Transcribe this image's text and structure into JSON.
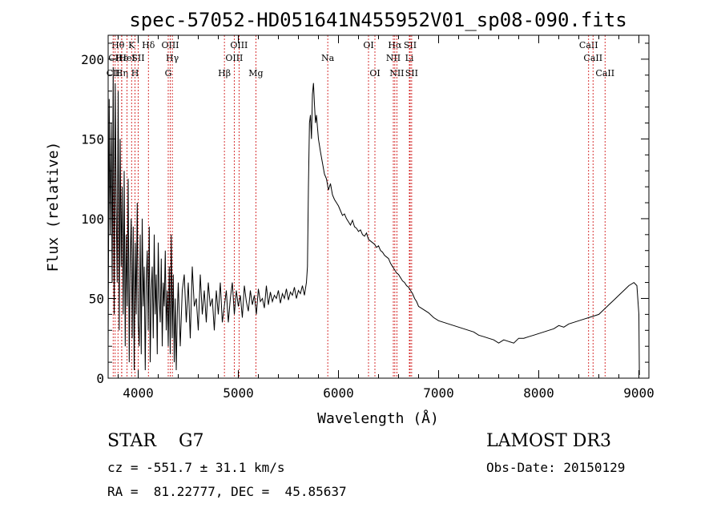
{
  "chart_data": {
    "type": "line",
    "title": "spec-57052-HD051641N455952V01_sp08-090.fits",
    "xlabel": "Wavelength (Å)",
    "ylabel": "Flux (relative)",
    "xlim": [
      3700,
      9100
    ],
    "ylim": [
      0,
      215
    ],
    "xticks": [
      4000,
      5000,
      6000,
      7000,
      8000,
      9000
    ],
    "yticks": [
      0,
      50,
      100,
      150,
      200
    ],
    "grid": false,
    "series_color": "#000000",
    "line_color": "#cc0000",
    "spectral_lines": [
      {
        "label": "Hθ",
        "x": 3798,
        "row": 0
      },
      {
        "label": "CII",
        "x": 3770,
        "row": 1
      },
      {
        "label": "Hε",
        "x": 3835,
        "row": 1
      },
      {
        "label": "CII",
        "x": 3750,
        "row": 2
      },
      {
        "label": "Hη",
        "x": 3835,
        "row": 2
      },
      {
        "label": "K",
        "x": 3934,
        "row": 0
      },
      {
        "label": "HeI",
        "x": 3889,
        "row": 1
      },
      {
        "label": "H",
        "x": 3968,
        "row": 2
      },
      {
        "label": "SII",
        "x": 4000,
        "row": 1
      },
      {
        "label": "Hδ",
        "x": 4102,
        "row": 0
      },
      {
        "label": "OIII",
        "x": 4320,
        "row": 0
      },
      {
        "label": "Hγ",
        "x": 4341,
        "row": 1
      },
      {
        "label": "G",
        "x": 4300,
        "row": 2
      },
      {
        "label": "Hβ",
        "x": 4861,
        "row": 2
      },
      {
        "label": "OIII",
        "x": 4959,
        "row": 1
      },
      {
        "label": "OIII",
        "x": 5007,
        "row": 0
      },
      {
        "label": "Mg",
        "x": 5175,
        "row": 2
      },
      {
        "label": "Na",
        "x": 5893,
        "row": 1
      },
      {
        "label": "OI",
        "x": 6300,
        "row": 0
      },
      {
        "label": "OI",
        "x": 6364,
        "row": 2
      },
      {
        "label": "Hα",
        "x": 6563,
        "row": 0
      },
      {
        "label": "NII",
        "x": 6548,
        "row": 1
      },
      {
        "label": "NII",
        "x": 6583,
        "row": 2
      },
      {
        "label": "SII",
        "x": 6716,
        "row": 0
      },
      {
        "label": "Li",
        "x": 6708,
        "row": 1
      },
      {
        "label": "SII",
        "x": 6731,
        "row": 2
      },
      {
        "label": "CaII",
        "x": 8498,
        "row": 0
      },
      {
        "label": "CaII",
        "x": 8542,
        "row": 1
      },
      {
        "label": "CaII",
        "x": 8662,
        "row": 2
      }
    ],
    "series": [
      {
        "x": [
          3700,
          3710,
          3720,
          3730,
          3740,
          3750,
          3760,
          3770,
          3780,
          3790,
          3800,
          3810,
          3820,
          3830,
          3840,
          3850,
          3860,
          3870,
          3880,
          3890,
          3900,
          3910,
          3920,
          3930,
          3940,
          3950,
          3960,
          3970,
          3980,
          3990,
          4000,
          4010,
          4020,
          4030,
          4040,
          4050,
          4060,
          4070,
          4080,
          4090,
          4100,
          4110,
          4120,
          4130,
          4140,
          4150,
          4160,
          4170,
          4180,
          4190,
          4200,
          4210,
          4220,
          4230,
          4240,
          4250,
          4260,
          4270,
          4280,
          4290,
          4300,
          4310,
          4320,
          4330,
          4340,
          4350,
          4360,
          4370,
          4380,
          4390,
          4400,
          4420,
          4440,
          4460,
          4480,
          4500,
          4520,
          4540,
          4560,
          4580,
          4600,
          4620,
          4640,
          4660,
          4680,
          4700,
          4720,
          4740,
          4760,
          4780,
          4800,
          4820,
          4840,
          4860,
          4880,
          4900,
          4920,
          4940,
          4960,
          4980,
          5000,
          5020,
          5040,
          5060,
          5080,
          5100,
          5120,
          5140,
          5160,
          5180,
          5200,
          5220,
          5240,
          5260,
          5280,
          5300,
          5320,
          5340,
          5360,
          5380,
          5400,
          5420,
          5440,
          5460,
          5480,
          5500,
          5520,
          5540,
          5560,
          5580,
          5600,
          5620,
          5640,
          5660,
          5680,
          5690,
          5700,
          5710,
          5720,
          5730,
          5740,
          5750,
          5760,
          5770,
          5780,
          5800,
          5820,
          5840,
          5860,
          5880,
          5900,
          5920,
          5940,
          5960,
          5980,
          6000,
          6020,
          6040,
          6060,
          6080,
          6100,
          6120,
          6140,
          6160,
          6180,
          6200,
          6220,
          6240,
          6260,
          6280,
          6300,
          6320,
          6340,
          6360,
          6380,
          6400,
          6420,
          6440,
          6460,
          6480,
          6500,
          6520,
          6540,
          6560,
          6580,
          6600,
          6620,
          6640,
          6660,
          6680,
          6700,
          6720,
          6740,
          6760,
          6780,
          6800,
          6850,
          6900,
          6950,
          7000,
          7050,
          7100,
          7150,
          7200,
          7250,
          7300,
          7350,
          7400,
          7450,
          7500,
          7550,
          7600,
          7650,
          7700,
          7750,
          7800,
          7850,
          7900,
          7950,
          8000,
          8050,
          8100,
          8150,
          8200,
          8250,
          8300,
          8350,
          8400,
          8450,
          8500,
          8550,
          8600,
          8650,
          8700,
          8750,
          8800,
          8850,
          8900,
          8950,
          8980,
          9000,
          9005
        ],
        "values": [
          20,
          175,
          90,
          160,
          60,
          195,
          40,
          185,
          110,
          60,
          180,
          30,
          150,
          70,
          120,
          40,
          130,
          20,
          90,
          45,
          125,
          10,
          75,
          100,
          25,
          95,
          5,
          85,
          40,
          110,
          35,
          20,
          90,
          15,
          100,
          45,
          70,
          5,
          60,
          80,
          30,
          95,
          10,
          55,
          70,
          25,
          90,
          40,
          65,
          15,
          85,
          50,
          35,
          75,
          20,
          60,
          45,
          80,
          30,
          55,
          20,
          70,
          15,
          90,
          25,
          65,
          10,
          50,
          5,
          40,
          60,
          20,
          55,
          65,
          35,
          60,
          25,
          70,
          45,
          50,
          30,
          65,
          40,
          55,
          35,
          60,
          45,
          50,
          30,
          55,
          40,
          60,
          35,
          45,
          55,
          35,
          50,
          60,
          40,
          55,
          45,
          52,
          38,
          58,
          48,
          42,
          55,
          46,
          52,
          40,
          56,
          48,
          50,
          44,
          58,
          46,
          54,
          48,
          52,
          50,
          55,
          47,
          53,
          50,
          56,
          49,
          54,
          52,
          57,
          50,
          55,
          53,
          58,
          52,
          60,
          70,
          120,
          160,
          165,
          150,
          178,
          185,
          172,
          160,
          165,
          150,
          142,
          135,
          128,
          125,
          118,
          122,
          115,
          112,
          110,
          108,
          105,
          102,
          103,
          100,
          98,
          96,
          99,
          95,
          94,
          92,
          93,
          90,
          89,
          91,
          87,
          86,
          85,
          84,
          82,
          83,
          80,
          79,
          77,
          76,
          75,
          72,
          70,
          68,
          66,
          65,
          63,
          61,
          60,
          58,
          57,
          55,
          53,
          50,
          48,
          45,
          43,
          41,
          38,
          36,
          35,
          34,
          33,
          32,
          31,
          30,
          29,
          27,
          26,
          25,
          24,
          22,
          24,
          23,
          22,
          25,
          25,
          26,
          27,
          28,
          29,
          30,
          31,
          33,
          32,
          34,
          35,
          36,
          37,
          38,
          39,
          40,
          43,
          46,
          49,
          52,
          55,
          58,
          60,
          58,
          40,
          2
        ]
      }
    ]
  },
  "footer": {
    "object": "STAR    G7",
    "survey": "LAMOST DR3",
    "cz": "cz = -551.7 ± 31.1 km/s",
    "obs_date": "Obs-Date: 20150129",
    "coords": "RA =  81.22777, DEC =  45.85637"
  }
}
